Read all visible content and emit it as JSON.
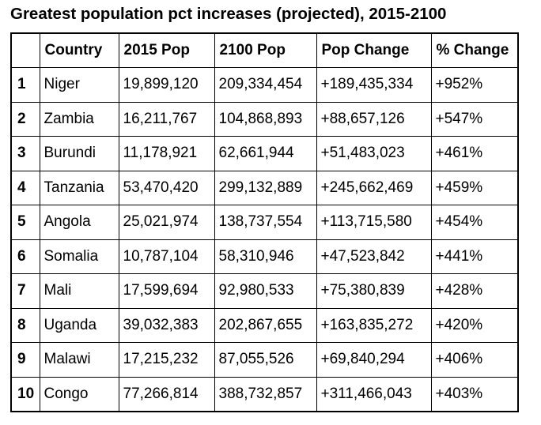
{
  "title": "Greatest population pct increases (projected), 2015-2100",
  "columns": [
    "",
    "Country",
    "2015 Pop",
    "2100 Pop",
    "Pop Change",
    "% Change"
  ],
  "rows": [
    [
      "1",
      "Niger",
      "19,899,120",
      "209,334,454",
      "+189,435,334",
      "+952%"
    ],
    [
      "2",
      "Zambia",
      "16,211,767",
      "104,868,893",
      "+88,657,126",
      "+547%"
    ],
    [
      "3",
      "Burundi",
      "11,178,921",
      "62,661,944",
      "+51,483,023",
      "+461%"
    ],
    [
      "4",
      "Tanzania",
      "53,470,420",
      "299,132,889",
      "+245,662,469",
      "+459%"
    ],
    [
      "5",
      "Angola",
      "25,021,974",
      "138,737,554",
      "+113,715,580",
      "+454%"
    ],
    [
      "6",
      "Somalia",
      "10,787,104",
      "58,310,946",
      "+47,523,842",
      "+441%"
    ],
    [
      "7",
      "Mali",
      "17,599,694",
      "92,980,533",
      "+75,380,839",
      "+428%"
    ],
    [
      "8",
      "Uganda",
      "39,032,383",
      "202,867,655",
      "+163,835,272",
      "+420%"
    ],
    [
      "9",
      "Malawi",
      "17,215,232",
      "87,055,526",
      "+69,840,294",
      "+406%"
    ],
    [
      "10",
      "Congo",
      "77,266,814",
      "388,732,857",
      "+311,466,043",
      "+403%"
    ]
  ]
}
